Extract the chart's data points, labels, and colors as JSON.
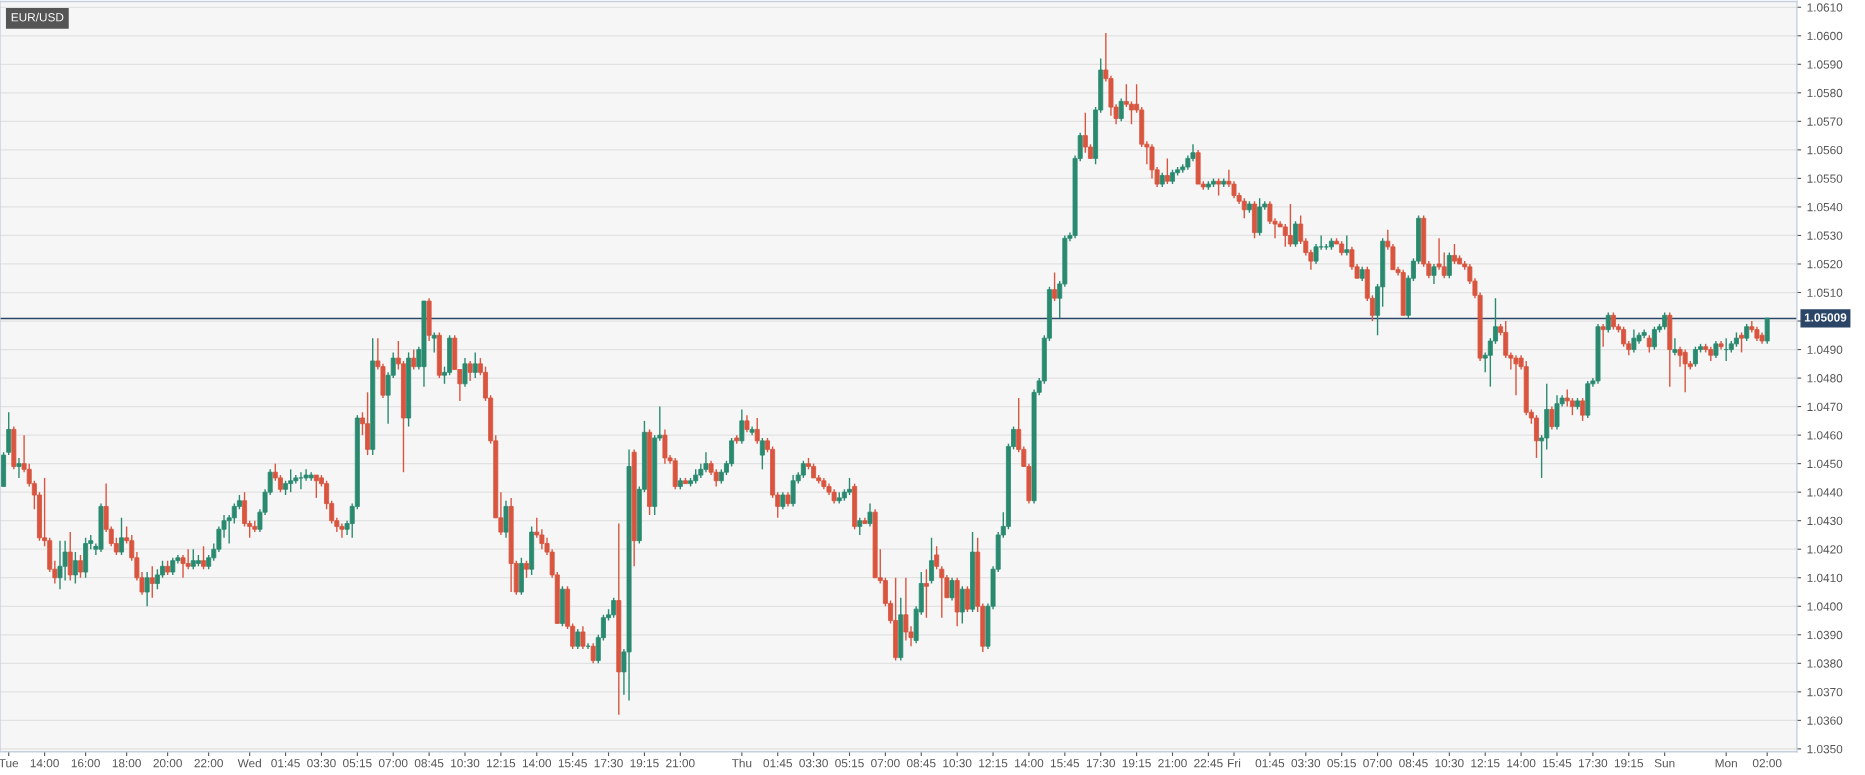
{
  "chart_data": {
    "type": "candlestick",
    "title": "EUR/USD",
    "categories": [
      null,
      "Tue",
      null,
      null,
      null,
      null,
      null,
      null,
      "14:00",
      null,
      null,
      null,
      null,
      null,
      null,
      null,
      "16:00",
      null,
      null,
      null,
      null,
      null,
      null,
      null,
      "18:00",
      null,
      null,
      null,
      null,
      null,
      null,
      null,
      "20:00",
      null,
      null,
      null,
      null,
      null,
      null,
      null,
      "22:00",
      null,
      null,
      null,
      null,
      null,
      null,
      null,
      "Wed",
      null,
      null,
      null,
      null,
      null,
      null,
      "01:45",
      null,
      null,
      null,
      null,
      null,
      null,
      "03:30",
      null,
      null,
      null,
      null,
      null,
      null,
      "05:15",
      null,
      null,
      null,
      null,
      null,
      null,
      "07:00",
      null,
      null,
      null,
      null,
      null,
      null,
      "08:45",
      null,
      null,
      null,
      null,
      null,
      null,
      "10:30",
      null,
      null,
      null,
      null,
      null,
      null,
      "12:15",
      null,
      null,
      null,
      null,
      null,
      null,
      "14:00",
      null,
      null,
      null,
      null,
      null,
      null,
      "15:45",
      null,
      null,
      null,
      null,
      null,
      null,
      "17:30",
      null,
      null,
      null,
      null,
      null,
      null,
      "19:15",
      null,
      null,
      null,
      null,
      null,
      null,
      "21:00",
      null,
      null,
      null,
      null,
      null,
      null,
      null,
      null,
      null,
      null,
      null,
      "Thu",
      null,
      null,
      null,
      null,
      null,
      null,
      "01:45",
      null,
      null,
      null,
      null,
      null,
      null,
      "03:30",
      null,
      null,
      null,
      null,
      null,
      null,
      "05:15",
      null,
      null,
      null,
      null,
      null,
      null,
      "07:00",
      null,
      null,
      null,
      null,
      null,
      null,
      "08:45",
      null,
      null,
      null,
      null,
      null,
      null,
      "10:30",
      null,
      null,
      null,
      null,
      null,
      null,
      "12:15",
      null,
      null,
      null,
      null,
      null,
      null,
      "14:00",
      null,
      null,
      null,
      null,
      null,
      null,
      "15:45",
      null,
      null,
      null,
      null,
      null,
      null,
      "17:30",
      null,
      null,
      null,
      null,
      null,
      null,
      "19:15",
      null,
      null,
      null,
      null,
      null,
      null,
      "21:00",
      null,
      null,
      null,
      null,
      null,
      null,
      "22:45",
      null,
      null,
      null,
      null,
      "Fri",
      null,
      null,
      null,
      null,
      null,
      null,
      "01:45",
      null,
      null,
      null,
      null,
      null,
      null,
      "03:30",
      null,
      null,
      null,
      null,
      null,
      null,
      "05:15",
      null,
      null,
      null,
      null,
      null,
      null,
      "07:00",
      null,
      null,
      null,
      null,
      null,
      null,
      "08:45",
      null,
      null,
      null,
      null,
      null,
      null,
      "10:30",
      null,
      null,
      null,
      null,
      null,
      null,
      "12:15",
      null,
      null,
      null,
      null,
      null,
      null,
      "14:00",
      null,
      null,
      null,
      null,
      null,
      null,
      "15:45",
      null,
      null,
      null,
      null,
      null,
      null,
      "17:30",
      null,
      null,
      null,
      null,
      null,
      null,
      "19:15",
      null,
      null,
      null,
      null,
      null,
      null,
      "Sun",
      null,
      null,
      null,
      null,
      null,
      null,
      null,
      null,
      null,
      null,
      null,
      "Mon",
      null,
      null,
      null,
      null,
      null,
      null,
      null,
      "02:00"
    ],
    "ohlc": [
      [
        1.0442,
        1.0454,
        1.0442,
        1.0453
      ],
      [
        1.0454,
        1.0468,
        1.0453,
        1.0462
      ],
      [
        1.0462,
        1.0463,
        1.0448,
        1.0449
      ],
      [
        1.0449,
        1.0452,
        1.0445,
        1.045
      ],
      [
        1.045,
        1.046,
        1.0447,
        1.0448
      ],
      [
        1.0448,
        1.045,
        1.0442,
        1.0443
      ],
      [
        1.0443,
        1.0444,
        1.0434,
        1.0439
      ],
      [
        1.0439,
        1.044,
        1.0423,
        1.0424
      ],
      [
        1.0424,
        1.0445,
        1.0421,
        1.0423
      ],
      [
        1.0423,
        1.0424,
        1.0412,
        1.0413
      ],
      [
        1.0413,
        1.0416,
        1.0408,
        1.041
      ],
      [
        1.041,
        1.0423,
        1.0406,
        1.0414
      ],
      [
        1.0414,
        1.0423,
        1.0409,
        1.0419
      ],
      [
        1.0419,
        1.0426,
        1.0409,
        1.0411
      ],
      [
        1.0411,
        1.0419,
        1.0408,
        1.0416
      ],
      [
        1.0416,
        1.0418,
        1.041,
        1.0412
      ],
      [
        1.0412,
        1.0424,
        1.041,
        1.0422
      ],
      [
        1.0422,
        1.0425,
        1.042,
        1.0423
      ],
      [
        1.042,
        1.0422,
        1.0418,
        1.0421
      ],
      [
        1.042,
        1.0436,
        1.0419,
        1.0435
      ],
      [
        1.0435,
        1.0443,
        1.0426,
        1.0427
      ],
      [
        1.0427,
        1.0428,
        1.0421,
        1.0422
      ],
      [
        1.0422,
        1.0424,
        1.0418,
        1.0419
      ],
      [
        1.0419,
        1.0431,
        1.0418,
        1.0424
      ],
      [
        1.0424,
        1.0428,
        1.0422,
        1.0423
      ],
      [
        1.0423,
        1.0425,
        1.0416,
        1.0417
      ],
      [
        1.0417,
        1.0419,
        1.0409,
        1.041
      ],
      [
        1.041,
        1.0412,
        1.0404,
        1.0405
      ],
      [
        1.0405,
        1.0412,
        1.04,
        1.041
      ],
      [
        1.041,
        1.0414,
        1.0403,
        1.0408
      ],
      [
        1.0408,
        1.0413,
        1.0406,
        1.0411
      ],
      [
        1.0411,
        1.0416,
        1.041,
        1.0414
      ],
      [
        1.0414,
        1.0416,
        1.0411,
        1.0412
      ],
      [
        1.0412,
        1.0417,
        1.0411,
        1.0416
      ],
      [
        1.0416,
        1.0418,
        1.0415,
        1.0417
      ],
      [
        1.0417,
        1.0418,
        1.041,
        1.0415
      ],
      [
        1.0415,
        1.042,
        1.0413,
        1.0414
      ],
      [
        1.0414,
        1.042,
        1.0413,
        1.0416
      ],
      [
        1.0415,
        1.0418,
        1.0414,
        1.0416
      ],
      [
        1.0416,
        1.0421,
        1.0413,
        1.0414
      ],
      [
        1.0414,
        1.0418,
        1.0413,
        1.0417
      ],
      [
        1.0417,
        1.0422,
        1.0416,
        1.042
      ],
      [
        1.042,
        1.0428,
        1.0419,
        1.0427
      ],
      [
        1.0427,
        1.0432,
        1.0424,
        1.043
      ],
      [
        1.043,
        1.0432,
        1.0422,
        1.0431
      ],
      [
        1.0431,
        1.0436,
        1.0429,
        1.0435
      ],
      [
        1.0435,
        1.0439,
        1.0434,
        1.0437
      ],
      [
        1.0437,
        1.044,
        1.0428,
        1.0429
      ],
      [
        1.0429,
        1.043,
        1.0424,
        1.0428
      ],
      [
        1.0428,
        1.043,
        1.0426,
        1.0427
      ],
      [
        1.0427,
        1.0434,
        1.0426,
        1.0433
      ],
      [
        1.0433,
        1.0441,
        1.0432,
        1.044
      ],
      [
        1.044,
        1.0448,
        1.0439,
        1.0447
      ],
      [
        1.0447,
        1.045,
        1.0444,
        1.0445
      ],
      [
        1.0445,
        1.0446,
        1.044,
        1.0441
      ],
      [
        1.0441,
        1.0444,
        1.0439,
        1.0443
      ],
      [
        1.0443,
        1.0448,
        1.044,
        1.0444
      ],
      [
        1.0444,
        1.0446,
        1.0443,
        1.0445
      ],
      [
        1.0445,
        1.0447,
        1.0441,
        1.0445
      ],
      [
        1.0445,
        1.0448,
        1.0444,
        1.0446
      ],
      [
        1.0445,
        1.0447,
        1.0444,
        1.0446
      ],
      [
        1.0446,
        1.0446,
        1.0438,
        1.0444
      ],
      [
        1.0445,
        1.0446,
        1.0442,
        1.0443
      ],
      [
        1.0443,
        1.0444,
        1.0434,
        1.0436
      ],
      [
        1.0436,
        1.0437,
        1.0429,
        1.043
      ],
      [
        1.043,
        1.0431,
        1.0426,
        1.0428
      ],
      [
        1.0428,
        1.0429,
        1.0424,
        1.0427
      ],
      [
        1.0427,
        1.043,
        1.0425,
        1.0429
      ],
      [
        1.0429,
        1.0436,
        1.0424,
        1.0435
      ],
      [
        1.0435,
        1.0467,
        1.0434,
        1.0466
      ],
      [
        1.0466,
        1.0468,
        1.046,
        1.0464
      ],
      [
        1.0464,
        1.0475,
        1.0453,
        1.0455
      ],
      [
        1.0455,
        1.0494,
        1.0453,
        1.0486
      ],
      [
        1.0486,
        1.0494,
        1.0483,
        1.0484
      ],
      [
        1.0484,
        1.0485,
        1.0473,
        1.0474
      ],
      [
        1.0474,
        1.0482,
        1.0464,
        1.0481
      ],
      [
        1.0481,
        1.0489,
        1.048,
        1.0487
      ],
      [
        1.0487,
        1.0493,
        1.0483,
        1.0485
      ],
      [
        1.0485,
        1.0486,
        1.0447,
        1.0466
      ],
      [
        1.0466,
        1.0489,
        1.0463,
        1.0487
      ],
      [
        1.0487,
        1.049,
        1.0483,
        1.0484
      ],
      [
        1.0484,
        1.0491,
        1.0483,
        1.049
      ],
      [
        1.0484,
        1.0507,
        1.0477,
        1.0507
      ],
      [
        1.0507,
        1.0508,
        1.0493,
        1.0495
      ],
      [
        1.0494,
        1.0496,
        1.0489,
        1.0495
      ],
      [
        1.0495,
        1.0496,
        1.048,
        1.0481
      ],
      [
        1.0481,
        1.0484,
        1.0478,
        1.0482
      ],
      [
        1.0482,
        1.0495,
        1.0481,
        1.0494
      ],
      [
        1.0494,
        1.0495,
        1.0483,
        1.0483
      ],
      [
        1.0483,
        1.0483,
        1.0472,
        1.0478
      ],
      [
        1.0478,
        1.0487,
        1.0477,
        1.0485
      ],
      [
        1.0485,
        1.0486,
        1.0479,
        1.0482
      ],
      [
        1.0482,
        1.0489,
        1.048,
        1.0485
      ],
      [
        1.0485,
        1.0487,
        1.0481,
        1.0482
      ],
      [
        1.0482,
        1.0484,
        1.0472,
        1.0473
      ],
      [
        1.0473,
        1.0474,
        1.0457,
        1.0458
      ],
      [
        1.0458,
        1.046,
        1.0431,
        1.0431
      ],
      [
        1.0431,
        1.044,
        1.0425,
        1.0426
      ],
      [
        1.0426,
        1.0437,
        1.0424,
        1.0435
      ],
      [
        1.0435,
        1.0438,
        1.0405,
        1.0415
      ],
      [
        1.0415,
        1.0416,
        1.0404,
        1.0405
      ],
      [
        1.0405,
        1.0417,
        1.0404,
        1.0415
      ],
      [
        1.0415,
        1.0416,
        1.041,
        1.0413
      ],
      [
        1.0413,
        1.0428,
        1.0411,
        1.0426
      ],
      [
        1.0426,
        1.0431,
        1.0424,
        1.0425
      ],
      [
        1.0425,
        1.0427,
        1.042,
        1.0422
      ],
      [
        1.0422,
        1.0424,
        1.0418,
        1.0419
      ],
      [
        1.0419,
        1.042,
        1.041,
        1.0411
      ],
      [
        1.0411,
        1.0412,
        1.0394,
        1.0394
      ],
      [
        1.0394,
        1.0407,
        1.0393,
        1.0406
      ],
      [
        1.0406,
        1.0407,
        1.0392,
        1.0393
      ],
      [
        1.0393,
        1.0394,
        1.0385,
        1.0386
      ],
      [
        1.0386,
        1.0392,
        1.0385,
        1.0391
      ],
      [
        1.0391,
        1.0393,
        1.0385,
        1.0386
      ],
      [
        1.0386,
        1.0387,
        1.0385,
        1.0386
      ],
      [
        1.0386,
        1.0387,
        1.038,
        1.0381
      ],
      [
        1.0381,
        1.039,
        1.038,
        1.0389
      ],
      [
        1.0389,
        1.0397,
        1.0388,
        1.0396
      ],
      [
        1.0396,
        1.0399,
        1.0395,
        1.0397
      ],
      [
        1.0397,
        1.0403,
        1.0396,
        1.0402
      ],
      [
        1.0402,
        1.0429,
        1.0362,
        1.0377
      ],
      [
        1.0377,
        1.0385,
        1.0369,
        1.0384
      ],
      [
        1.0384,
        1.0455,
        1.0367,
        1.0449
      ],
      [
        1.0454,
        1.0455,
        1.0414,
        1.0423
      ],
      [
        1.0423,
        1.0442,
        1.0422,
        1.0441
      ],
      [
        1.0441,
        1.0465,
        1.044,
        1.0461
      ],
      [
        1.0461,
        1.0462,
        1.0432,
        1.0435
      ],
      [
        1.0435,
        1.046,
        1.0432,
        1.0459
      ],
      [
        1.0459,
        1.047,
        1.0458,
        1.046
      ],
      [
        1.046,
        1.0462,
        1.045,
        1.0452
      ],
      [
        1.0452,
        1.0453,
        1.045,
        1.0451
      ],
      [
        1.0451,
        1.0452,
        1.0441,
        1.0442
      ],
      [
        1.0442,
        1.0445,
        1.0441,
        1.0444
      ],
      [
        1.0444,
        1.0445,
        1.0443,
        1.0443
      ],
      [
        1.0443,
        1.0445,
        1.0442,
        1.0444
      ],
      [
        1.0444,
        1.0448,
        1.0443,
        1.0446
      ],
      [
        1.0446,
        1.045,
        1.0445,
        1.0448
      ],
      [
        1.0448,
        1.0454,
        1.0447,
        1.045
      ],
      [
        1.045,
        1.0451,
        1.0446,
        1.0447
      ],
      [
        1.0447,
        1.0448,
        1.0442,
        1.0444
      ],
      [
        1.0444,
        1.0448,
        1.0443,
        1.0447
      ],
      [
        1.0447,
        1.0451,
        1.0446,
        1.045
      ],
      [
        1.045,
        1.0459,
        1.0449,
        1.0458
      ],
      [
        1.0459,
        1.046,
        1.0457,
        1.0458
      ],
      [
        1.0458,
        1.0469,
        1.0457,
        1.0465
      ],
      [
        1.0465,
        1.0467,
        1.0461,
        1.0462
      ],
      [
        1.0461,
        1.0463,
        1.046,
        1.0462
      ],
      [
        1.0462,
        1.0466,
        1.0457,
        1.0458
      ],
      [
        1.0453,
        1.0459,
        1.0448,
        1.0458
      ],
      [
        1.0458,
        1.0459,
        1.0454,
        1.0455
      ],
      [
        1.0455,
        1.0456,
        1.0438,
        1.0439
      ],
      [
        1.0439,
        1.044,
        1.0431,
        1.0435
      ],
      [
        1.0435,
        1.044,
        1.0434,
        1.0439
      ],
      [
        1.0439,
        1.044,
        1.0435,
        1.0436
      ],
      [
        1.0436,
        1.0446,
        1.0435,
        1.0444
      ],
      [
        1.0444,
        1.0447,
        1.0443,
        1.0446
      ],
      [
        1.0446,
        1.0451,
        1.0445,
        1.045
      ],
      [
        1.045,
        1.0452,
        1.0448,
        1.0449
      ],
      [
        1.0449,
        1.045,
        1.0445,
        1.0445
      ],
      [
        1.0445,
        1.0446,
        1.0443,
        1.0444
      ],
      [
        1.0444,
        1.0445,
        1.0441,
        1.0442
      ],
      [
        1.0442,
        1.0443,
        1.0439,
        1.044
      ],
      [
        1.044,
        1.0441,
        1.0436,
        1.0437
      ],
      [
        1.0437,
        1.044,
        1.0436,
        1.0438
      ],
      [
        1.0438,
        1.0441,
        1.0437,
        1.044
      ],
      [
        1.044,
        1.0445,
        1.0439,
        1.0441
      ],
      [
        1.0442,
        1.0443,
        1.0427,
        1.0428
      ],
      [
        1.0428,
        1.0431,
        1.0425,
        1.043
      ],
      [
        1.043,
        1.0431,
        1.0429,
        1.0429
      ],
      [
        1.0429,
        1.0436,
        1.0428,
        1.0433
      ],
      [
        1.0433,
        1.0434,
        1.041,
        1.041
      ],
      [
        1.041,
        1.042,
        1.0408,
        1.0409
      ],
      [
        1.0409,
        1.041,
        1.04,
        1.0401
      ],
      [
        1.0401,
        1.0402,
        1.0394,
        1.0395
      ],
      [
        1.0395,
        1.041,
        1.0381,
        1.0382
      ],
      [
        1.0382,
        1.0403,
        1.0381,
        1.0397
      ],
      [
        1.0397,
        1.041,
        1.0388,
        1.0391
      ],
      [
        1.0391,
        1.0393,
        1.0386,
        1.0389
      ],
      [
        1.0388,
        1.04,
        1.0387,
        1.0399
      ],
      [
        1.0398,
        1.0412,
        1.0397,
        1.0408
      ],
      [
        1.0408,
        1.0413,
        1.0396,
        1.0407
      ],
      [
        1.0409,
        1.0424,
        1.0408,
        1.0416
      ],
      [
        1.0418,
        1.0421,
        1.0413,
        1.0414
      ],
      [
        1.0413,
        1.0414,
        1.0396,
        1.041
      ],
      [
        1.041,
        1.0411,
        1.0403,
        1.0403
      ],
      [
        1.0403,
        1.041,
        1.0402,
        1.0409
      ],
      [
        1.0409,
        1.041,
        1.0393,
        1.0398
      ],
      [
        1.0398,
        1.0407,
        1.0394,
        1.0406
      ],
      [
        1.0406,
        1.0407,
        1.0398,
        1.0399
      ],
      [
        1.0399,
        1.0426,
        1.0398,
        1.0419
      ],
      [
        1.0419,
        1.0424,
        1.0398,
        1.04
      ],
      [
        1.04,
        1.0401,
        1.0384,
        1.0386
      ],
      [
        1.0386,
        1.0401,
        1.0385,
        1.04
      ],
      [
        1.04,
        1.0414,
        1.0399,
        1.0413
      ],
      [
        1.0413,
        1.0426,
        1.0412,
        1.0425
      ],
      [
        1.0425,
        1.0433,
        1.0424,
        1.0428
      ],
      [
        1.0428,
        1.0457,
        1.0427,
        1.0456
      ],
      [
        1.0456,
        1.0463,
        1.0455,
        1.0462
      ],
      [
        1.0462,
        1.0473,
        1.0454,
        1.0455
      ],
      [
        1.0455,
        1.0456,
        1.0449,
        1.0449
      ],
      [
        1.0449,
        1.045,
        1.0436,
        1.0437
      ],
      [
        1.0437,
        1.0476,
        1.0436,
        1.0475
      ],
      [
        1.0475,
        1.048,
        1.0474,
        1.0479
      ],
      [
        1.0479,
        1.0495,
        1.0478,
        1.0494
      ],
      [
        1.0494,
        1.0512,
        1.0493,
        1.0511
      ],
      [
        1.0511,
        1.0517,
        1.0507,
        1.0508
      ],
      [
        1.0508,
        1.0514,
        1.0501,
        1.0513
      ],
      [
        1.0513,
        1.053,
        1.0512,
        1.0529
      ],
      [
        1.0529,
        1.0531,
        1.0528,
        1.053
      ],
      [
        1.053,
        1.0558,
        1.0529,
        1.0557
      ],
      [
        1.0557,
        1.0566,
        1.0556,
        1.0565
      ],
      [
        1.0565,
        1.0573,
        1.0559,
        1.0561
      ],
      [
        1.0561,
        1.0562,
        1.0557,
        1.0557
      ],
      [
        1.0557,
        1.0575,
        1.0555,
        1.0574
      ],
      [
        1.0574,
        1.0592,
        1.0573,
        1.0588
      ],
      [
        1.0588,
        1.0601,
        1.0584,
        1.0585
      ],
      [
        1.0585,
        1.0586,
        1.0572,
        1.0575
      ],
      [
        1.0575,
        1.0576,
        1.0569,
        1.0571
      ],
      [
        1.0571,
        1.0578,
        1.057,
        1.0577
      ],
      [
        1.0577,
        1.0583,
        1.0575,
        1.0576
      ],
      [
        1.0576,
        1.0577,
        1.0569,
        1.0574
      ],
      [
        1.0576,
        1.0583,
        1.0573,
        1.0574
      ],
      [
        1.0574,
        1.0575,
        1.0561,
        1.0562
      ],
      [
        1.0562,
        1.0563,
        1.0555,
        1.0561
      ],
      [
        1.0561,
        1.0562,
        1.055,
        1.0553
      ],
      [
        1.0553,
        1.0554,
        1.0547,
        1.0548
      ],
      [
        1.0548,
        1.0552,
        1.0547,
        1.0551
      ],
      [
        1.0551,
        1.0557,
        1.0548,
        1.0549
      ],
      [
        1.0549,
        1.0553,
        1.0548,
        1.0552
      ],
      [
        1.0552,
        1.0554,
        1.0551,
        1.0553
      ],
      [
        1.0553,
        1.0555,
        1.0552,
        1.0554
      ],
      [
        1.0554,
        1.0558,
        1.0553,
        1.0557
      ],
      [
        1.0557,
        1.0562,
        1.0556,
        1.0559
      ],
      [
        1.0559,
        1.056,
        1.0548,
        1.0548
      ],
      [
        1.0548,
        1.0549,
        1.0546,
        1.0547
      ],
      [
        1.0547,
        1.0549,
        1.0546,
        1.0548
      ],
      [
        1.0548,
        1.055,
        1.0547,
        1.0549
      ],
      [
        1.0549,
        1.055,
        1.0544,
        1.0548
      ],
      [
        1.0548,
        1.055,
        1.0547,
        1.0549
      ],
      [
        1.0549,
        1.0553,
        1.0547,
        1.0548
      ],
      [
        1.0548,
        1.0549,
        1.0543,
        1.0544
      ],
      [
        1.0544,
        1.0545,
        1.0541,
        1.0542
      ],
      [
        1.0542,
        1.0543,
        1.0536,
        1.0539
      ],
      [
        1.0539,
        1.0542,
        1.0538,
        1.0541
      ],
      [
        1.0541,
        1.0542,
        1.0529,
        1.0531
      ],
      [
        1.0531,
        1.0543,
        1.053,
        1.054
      ],
      [
        1.054,
        1.0542,
        1.0539,
        1.0541
      ],
      [
        1.0541,
        1.0542,
        1.0534,
        1.0535
      ],
      [
        1.0535,
        1.0536,
        1.0529,
        1.0534
      ],
      [
        1.0534,
        1.0535,
        1.0533,
        1.0533
      ],
      [
        1.0533,
        1.0534,
        1.0526,
        1.053
      ],
      [
        1.053,
        1.0541,
        1.0526,
        1.0527
      ],
      [
        1.0527,
        1.0535,
        1.0526,
        1.0534
      ],
      [
        1.0534,
        1.0537,
        1.0527,
        1.0528
      ],
      [
        1.0528,
        1.0529,
        1.0523,
        1.0524
      ],
      [
        1.0524,
        1.0525,
        1.0518,
        1.0521
      ],
      [
        1.0521,
        1.0527,
        1.052,
        1.0526
      ],
      [
        1.0526,
        1.053,
        1.0525,
        1.0526
      ],
      [
        1.0526,
        1.0527,
        1.0525,
        1.0526
      ],
      [
        1.0526,
        1.0529,
        1.0525,
        1.0528
      ],
      [
        1.0528,
        1.0529,
        1.0527,
        1.0527
      ],
      [
        1.0527,
        1.0528,
        1.0523,
        1.0524
      ],
      [
        1.0524,
        1.053,
        1.0523,
        1.0525
      ],
      [
        1.0525,
        1.0526,
        1.0518,
        1.0519
      ],
      [
        1.0519,
        1.052,
        1.0515,
        1.0515
      ],
      [
        1.0515,
        1.0519,
        1.0514,
        1.0518
      ],
      [
        1.0518,
        1.0519,
        1.0507,
        1.0508
      ],
      [
        1.0508,
        1.0509,
        1.05,
        1.0502
      ],
      [
        1.0502,
        1.0513,
        1.0495,
        1.0512
      ],
      [
        1.0512,
        1.0529,
        1.0505,
        1.0528
      ],
      [
        1.0528,
        1.0532,
        1.0525,
        1.0526
      ],
      [
        1.0526,
        1.0527,
        1.0518,
        1.0518
      ],
      [
        1.0518,
        1.0519,
        1.0516,
        1.0517
      ],
      [
        1.0517,
        1.0518,
        1.0502,
        1.0502
      ],
      [
        1.0502,
        1.0516,
        1.0501,
        1.0515
      ],
      [
        1.0515,
        1.0522,
        1.0514,
        1.0521
      ],
      [
        1.0521,
        1.0537,
        1.052,
        1.0536
      ],
      [
        1.0536,
        1.0537,
        1.0519,
        1.052
      ],
      [
        1.052,
        1.0521,
        1.0515,
        1.0516
      ],
      [
        1.0516,
        1.052,
        1.0513,
        1.0519
      ],
      [
        1.052,
        1.0529,
        1.0518,
        1.0519
      ],
      [
        1.0519,
        1.0524,
        1.0515,
        1.0516
      ],
      [
        1.0516,
        1.0524,
        1.0515,
        1.0523
      ],
      [
        1.0523,
        1.0527,
        1.052,
        1.0521
      ],
      [
        1.0522,
        1.0523,
        1.052,
        1.052
      ],
      [
        1.052,
        1.0521,
        1.0518,
        1.0519
      ],
      [
        1.0519,
        1.052,
        1.0513,
        1.0514
      ],
      [
        1.0514,
        1.0515,
        1.0508,
        1.0509
      ],
      [
        1.0509,
        1.051,
        1.0486,
        1.0487
      ],
      [
        1.0487,
        1.0489,
        1.0482,
        1.0488
      ],
      [
        1.0488,
        1.0494,
        1.0477,
        1.0493
      ],
      [
        1.0493,
        1.0508,
        1.0492,
        1.0498
      ],
      [
        1.0498,
        1.0499,
        1.0495,
        1.0496
      ],
      [
        1.0496,
        1.05,
        1.0487,
        1.0488
      ],
      [
        1.0488,
        1.0489,
        1.0483,
        1.0487
      ],
      [
        1.0487,
        1.0488,
        1.0474,
        1.0485
      ],
      [
        1.0487,
        1.0488,
        1.0483,
        1.0484
      ],
      [
        1.0484,
        1.0486,
        1.0467,
        1.0468
      ],
      [
        1.0468,
        1.0469,
        1.0464,
        1.0466
      ],
      [
        1.0466,
        1.0467,
        1.0452,
        1.0458
      ],
      [
        1.0458,
        1.046,
        1.0445,
        1.0459
      ],
      [
        1.0459,
        1.0478,
        1.0455,
        1.0469
      ],
      [
        1.0469,
        1.047,
        1.0462,
        1.0463
      ],
      [
        1.0463,
        1.0474,
        1.0462,
        1.0471
      ],
      [
        1.0471,
        1.0474,
        1.047,
        1.0473
      ],
      [
        1.0473,
        1.0476,
        1.047,
        1.0472
      ],
      [
        1.0472,
        1.0473,
        1.0467,
        1.047
      ],
      [
        1.047,
        1.0473,
        1.0469,
        1.0472
      ],
      [
        1.0472,
        1.0473,
        1.0465,
        1.0467
      ],
      [
        1.0467,
        1.0479,
        1.0466,
        1.0478
      ],
      [
        1.0478,
        1.048,
        1.0477,
        1.0479
      ],
      [
        1.0479,
        1.0499,
        1.0478,
        1.0498
      ],
      [
        1.0498,
        1.0499,
        1.0491,
        1.0497
      ],
      [
        1.0497,
        1.0503,
        1.0496,
        1.0502
      ],
      [
        1.0502,
        1.0503,
        1.0497,
        1.0498
      ],
      [
        1.0498,
        1.0499,
        1.0496,
        1.0497
      ],
      [
        1.0497,
        1.0498,
        1.0491,
        1.0492
      ],
      [
        1.0492,
        1.0493,
        1.0488,
        1.049
      ],
      [
        1.049,
        1.0497,
        1.0489,
        1.0494
      ],
      [
        1.0493,
        1.0496,
        1.0492,
        1.0495
      ],
      [
        1.0495,
        1.0497,
        1.0494,
        1.0496
      ],
      [
        1.0494,
        1.0495,
        1.0489,
        1.0491
      ],
      [
        1.0491,
        1.0498,
        1.049,
        1.0497
      ],
      [
        1.0497,
        1.0499,
        1.0496,
        1.0498
      ],
      [
        1.0498,
        1.0503,
        1.0497,
        1.0502
      ],
      [
        1.0502,
        1.0503,
        1.0477,
        1.049
      ],
      [
        1.0489,
        1.0494,
        1.0488,
        1.049
      ],
      [
        1.049,
        1.0491,
        1.0484,
        1.0488
      ],
      [
        1.0489,
        1.049,
        1.0475,
        1.0485
      ],
      [
        1.0485,
        1.0486,
        1.0483,
        1.0484
      ],
      [
        1.0485,
        1.0491,
        1.0484,
        1.049
      ],
      [
        1.049,
        1.0492,
        1.0489,
        1.0491
      ],
      [
        1.0491,
        1.0492,
        1.0489,
        1.049
      ],
      [
        1.049,
        1.0491,
        1.0486,
        1.0488
      ],
      [
        1.0488,
        1.0493,
        1.0487,
        1.0492
      ],
      [
        1.0492,
        1.0493,
        1.049,
        1.0491
      ],
      [
        1.049,
        1.0494,
        1.0486,
        1.049
      ],
      [
        1.049,
        1.0493,
        1.0489,
        1.0492
      ],
      [
        1.0492,
        1.0496,
        1.0491,
        1.0494
      ],
      [
        1.0495,
        1.0496,
        1.0489,
        1.0494
      ],
      [
        1.0494,
        1.0499,
        1.0493,
        1.0498
      ],
      [
        1.0498,
        1.05,
        1.0496,
        1.0497
      ],
      [
        1.0497,
        1.0498,
        1.0493,
        1.0494
      ],
      [
        1.0495,
        1.0496,
        1.0492,
        1.0493
      ],
      [
        1.0493,
        1.0501,
        1.0492,
        1.0501
      ]
    ],
    "ylim": [
      1.0349,
      1.0612
    ],
    "yticks": [
      {
        "value": 1.035,
        "label": "1.0350"
      },
      {
        "value": 1.036,
        "label": "1.0360"
      },
      {
        "value": 1.037,
        "label": "1.0370"
      },
      {
        "value": 1.038,
        "label": "1.0380"
      },
      {
        "value": 1.039,
        "label": "1.0390"
      },
      {
        "value": 1.04,
        "label": "1.0400"
      },
      {
        "value": 1.041,
        "label": "1.0410"
      },
      {
        "value": 1.042,
        "label": "1.0420"
      },
      {
        "value": 1.043,
        "label": "1.0430"
      },
      {
        "value": 1.044,
        "label": "1.0440"
      },
      {
        "value": 1.045,
        "label": "1.0450"
      },
      {
        "value": 1.046,
        "label": "1.0460"
      },
      {
        "value": 1.047,
        "label": "1.0470"
      },
      {
        "value": 1.048,
        "label": "1.0480"
      },
      {
        "value": 1.049,
        "label": "1.0490"
      },
      {
        "value": 1.05,
        "label": null
      },
      {
        "value": 1.051,
        "label": "1.0510"
      },
      {
        "value": 1.052,
        "label": "1.0520"
      },
      {
        "value": 1.053,
        "label": "1.0530"
      },
      {
        "value": 1.054,
        "label": "1.0540"
      },
      {
        "value": 1.055,
        "label": "1.0550"
      },
      {
        "value": 1.056,
        "label": "1.0560"
      },
      {
        "value": 1.057,
        "label": "1.0570"
      },
      {
        "value": 1.058,
        "label": "1.0580"
      },
      {
        "value": 1.059,
        "label": "1.0590"
      },
      {
        "value": 1.06,
        "label": "1.0600"
      },
      {
        "value": 1.061,
        "label": "1.0610"
      }
    ],
    "ref_lines": [
      {
        "axis": "y",
        "value": 1.05009,
        "label": "1.05009",
        "color": "#2b4566"
      }
    ],
    "grid": "y"
  }
}
